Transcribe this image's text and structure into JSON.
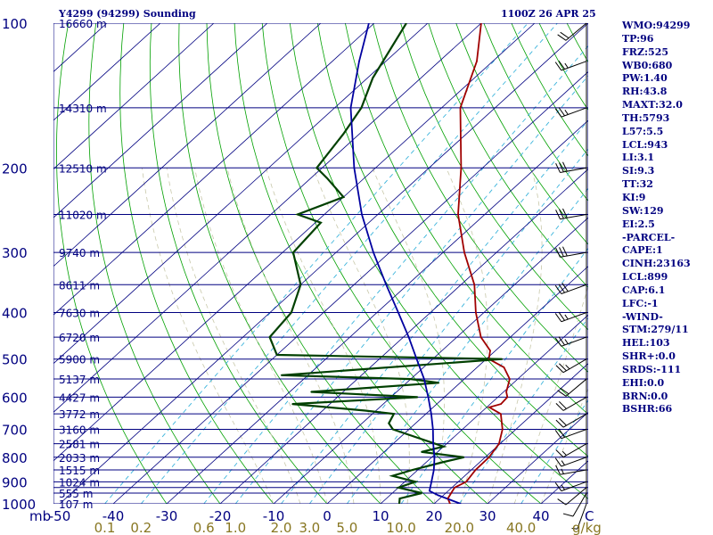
{
  "header": {
    "station": "Y4299 (94299) Sounding",
    "time": "1100Z 26 APR 25"
  },
  "indices": [
    "WMO:94299",
    "TP:96",
    "FRZ:525",
    "WB0:680",
    "PW:1.40",
    "RH:43.8",
    "MAXT:32.0",
    "TH:5793",
    "L57:5.5",
    "LCL:943",
    "LI:3.1",
    "SI:9.3",
    "TT:32",
    "KI:9",
    "SW:129",
    "EI:2.5",
    "-PARCEL-",
    "CAPE:1",
    "CINH:23163",
    "LCL:899",
    "CAP:6.1",
    "LFC:-1",
    "-WIND-",
    "STM:279/11",
    "HEL:103",
    "SHR+:0.0",
    "SRDS:-111",
    "EHI:0.0",
    "BRN:0.0",
    "BSHR:66"
  ],
  "colors": {
    "isobar": "#000080",
    "isotherm": "#000080",
    "dry_adiabat": "#00a000",
    "moist_adiabat": "#c8c8aa",
    "mixing_ratio": "#3cb4dc",
    "temperature": "#a00000",
    "dewpoint": "#004000",
    "parcel": "#0000a0",
    "wind": "#000000",
    "label": "#000080",
    "mixing_label": "#887722"
  },
  "chart_data": {
    "type": "skew-t",
    "pressure_unit": "mb",
    "temperature_unit": "C",
    "mixing_ratio_unit": "g/kg",
    "pressure_ticks": [
      "100",
      "200",
      "300",
      "400",
      "500",
      "600",
      "700",
      "800",
      "900",
      "1000"
    ],
    "pressure_tick_values": [
      100,
      200,
      300,
      400,
      500,
      600,
      700,
      800,
      900,
      1000
    ],
    "isobar_pressures": [
      100,
      150,
      200,
      250,
      300,
      350,
      400,
      450,
      500,
      550,
      600,
      650,
      700,
      750,
      800,
      850,
      900,
      925,
      950,
      1000
    ],
    "height_labels": [
      {
        "p": 100,
        "label": "16660 m"
      },
      {
        "p": 150,
        "label": "14310 m"
      },
      {
        "p": 200,
        "label": "12510 m"
      },
      {
        "p": 250,
        "label": "11020 m"
      },
      {
        "p": 300,
        "label": "9740 m"
      },
      {
        "p": 350,
        "label": "8611 m"
      },
      {
        "p": 400,
        "label": "7630 m"
      },
      {
        "p": 450,
        "label": "6720 m"
      },
      {
        "p": 500,
        "label": "5900 m"
      },
      {
        "p": 550,
        "label": "5137 m"
      },
      {
        "p": 600,
        "label": "4427 m"
      },
      {
        "p": 650,
        "label": "3772 m"
      },
      {
        "p": 700,
        "label": "3160 m"
      },
      {
        "p": 750,
        "label": "2581 m"
      },
      {
        "p": 800,
        "label": "2033 m"
      },
      {
        "p": 850,
        "label": "1515 m"
      },
      {
        "p": 900,
        "label": "1024 m"
      },
      {
        "p": 950,
        "label": "555 m"
      },
      {
        "p": 1000,
        "label": "107 m"
      }
    ],
    "temperature_ticks": [
      "-50",
      "-40",
      "-30",
      "-20",
      "-10",
      "0",
      "10",
      "20",
      "30",
      "40",
      "C"
    ],
    "temperature_tick_values": [
      -50,
      -40,
      -30,
      -20,
      -10,
      0,
      10,
      20,
      30,
      40
    ],
    "mixing_ratio_ticks": [
      "0.1",
      "0.2",
      "0.6",
      "1.0",
      "2.0",
      "3.0",
      "5.0",
      "10.0",
      "20.0",
      "40.0",
      "g/kg"
    ],
    "mixing_ratio_values": [
      0.1,
      0.2,
      0.6,
      1.0,
      2.0,
      3.0,
      5.0,
      10.0,
      20.0,
      40.0
    ],
    "axis_label_left": "mb",
    "temperature_profile": [
      [
        1000,
        23.0
      ],
      [
        975,
        21.5
      ],
      [
        950,
        21.0
      ],
      [
        925,
        20.5
      ],
      [
        900,
        21.5
      ],
      [
        850,
        20.8
      ],
      [
        800,
        20.7
      ],
      [
        750,
        19.8
      ],
      [
        700,
        17.5
      ],
      [
        650,
        14.0
      ],
      [
        630,
        10.5
      ],
      [
        620,
        12.0
      ],
      [
        600,
        11.8
      ],
      [
        585,
        10.5
      ],
      [
        550,
        8.5
      ],
      [
        520,
        5.0
      ],
      [
        500,
        0.5
      ],
      [
        480,
        -1.0
      ],
      [
        450,
        -5.5
      ],
      [
        400,
        -11.5
      ],
      [
        350,
        -17.5
      ],
      [
        300,
        -26.0
      ],
      [
        250,
        -35.0
      ],
      [
        200,
        -44.0
      ],
      [
        150,
        -56.5
      ],
      [
        120,
        -63.0
      ],
      [
        100,
        -70.0
      ]
    ],
    "dewpoint_profile": [
      [
        1000,
        13.5
      ],
      [
        975,
        12.5
      ],
      [
        950,
        15.5
      ],
      [
        925,
        10.0
      ],
      [
        900,
        12.0
      ],
      [
        875,
        6.5
      ],
      [
        850,
        9.0
      ],
      [
        820,
        13.0
      ],
      [
        800,
        16.0
      ],
      [
        780,
        7.0
      ],
      [
        760,
        10.0
      ],
      [
        700,
        -3.0
      ],
      [
        680,
        -5.0
      ],
      [
        650,
        -6.0
      ],
      [
        640,
        -12.0
      ],
      [
        620,
        -27.0
      ],
      [
        600,
        -5.0
      ],
      [
        585,
        -26.0
      ],
      [
        560,
        -4.0
      ],
      [
        550,
        -10.0
      ],
      [
        540,
        -35.0
      ],
      [
        500,
        3.0
      ],
      [
        490,
        -40.0
      ],
      [
        450,
        -45.0
      ],
      [
        400,
        -46.0
      ],
      [
        350,
        -50.0
      ],
      [
        300,
        -58.0
      ],
      [
        260,
        -59.0
      ],
      [
        250,
        -65.0
      ],
      [
        230,
        -60.0
      ],
      [
        210,
        -67.0
      ],
      [
        200,
        -71.0
      ],
      [
        170,
        -73.0
      ],
      [
        150,
        -75.0
      ],
      [
        130,
        -79.0
      ],
      [
        100,
        -84.0
      ]
    ],
    "parcel_profile": [
      [
        1000,
        25.0
      ],
      [
        960,
        19.0
      ],
      [
        940,
        16.5
      ],
      [
        900,
        15.0
      ],
      [
        850,
        13.0
      ],
      [
        800,
        10.5
      ],
      [
        750,
        7.5
      ],
      [
        700,
        4.5
      ],
      [
        650,
        1.0
      ],
      [
        600,
        -3.0
      ],
      [
        550,
        -7.5
      ],
      [
        500,
        -13.0
      ],
      [
        450,
        -19.0
      ],
      [
        400,
        -26.0
      ],
      [
        350,
        -34.0
      ],
      [
        300,
        -43.0
      ],
      [
        250,
        -53.0
      ],
      [
        200,
        -64.0
      ],
      [
        150,
        -77.0
      ],
      [
        120,
        -85.0
      ],
      [
        100,
        -91.0
      ]
    ],
    "wind_barbs": [
      {
        "p": 1000,
        "dir": 200,
        "spd": 5
      },
      {
        "p": 950,
        "dir": 210,
        "spd": 10
      },
      {
        "p": 925,
        "dir": 230,
        "spd": 10
      },
      {
        "p": 900,
        "dir": 250,
        "spd": 15
      },
      {
        "p": 850,
        "dir": 260,
        "spd": 15
      },
      {
        "p": 800,
        "dir": 250,
        "spd": 15
      },
      {
        "p": 750,
        "dir": 240,
        "spd": 15
      },
      {
        "p": 700,
        "dir": 250,
        "spd": 20
      },
      {
        "p": 650,
        "dir": 240,
        "spd": 20
      },
      {
        "p": 600,
        "dir": 240,
        "spd": 20
      },
      {
        "p": 550,
        "dir": 230,
        "spd": 20
      },
      {
        "p": 500,
        "dir": 240,
        "spd": 25
      },
      {
        "p": 450,
        "dir": 250,
        "spd": 25
      },
      {
        "p": 400,
        "dir": 250,
        "spd": 25
      },
      {
        "p": 350,
        "dir": 250,
        "spd": 30
      },
      {
        "p": 300,
        "dir": 260,
        "spd": 30
      },
      {
        "p": 250,
        "dir": 260,
        "spd": 30
      },
      {
        "p": 200,
        "dir": 260,
        "spd": 30
      },
      {
        "p": 150,
        "dir": 250,
        "spd": 25
      },
      {
        "p": 120,
        "dir": 250,
        "spd": 25
      },
      {
        "p": 100,
        "dir": 230,
        "spd": 20
      }
    ]
  }
}
